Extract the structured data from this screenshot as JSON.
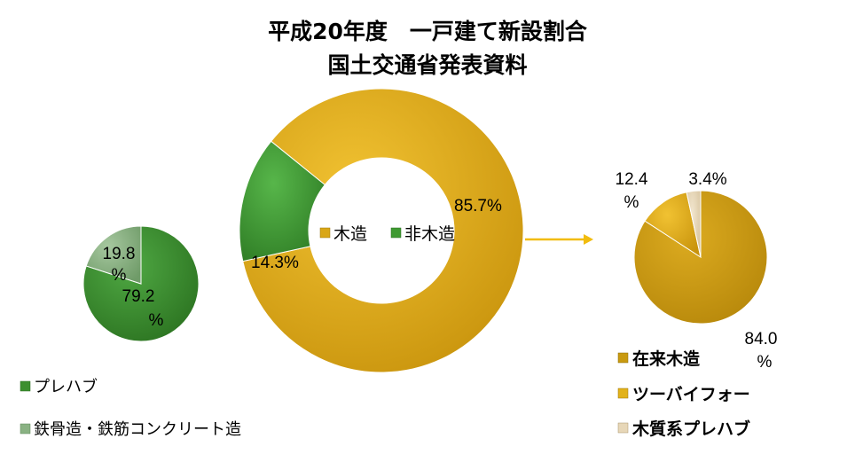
{
  "chart_data": [
    {
      "type": "pie",
      "title_lines": [
        "平成20年度　一戸建て新設割合",
        "国土交通省発表資料"
      ],
      "categories": [
        "木造",
        "非木造"
      ],
      "values": [
        85.7,
        14.3
      ],
      "labels": [
        "85.7%",
        "14.3%"
      ],
      "legend": [
        "木造",
        "非木造"
      ],
      "legend_position": "center",
      "colors": [
        "#d9a617",
        "#3f9a32"
      ],
      "style": "donut"
    },
    {
      "type": "pie",
      "categories": [
        "プレハブ",
        "鉄骨造・鉄筋コンクリート造"
      ],
      "values": [
        79.2,
        19.8
      ],
      "labels": [
        "79.2\n%",
        "19.8\n%"
      ],
      "legend": [
        "プレハブ",
        "鉄骨造・鉄筋コンクリート造"
      ],
      "legend_position": "bottom",
      "colors": [
        "#3d8f2f",
        "#8ab283"
      ]
    },
    {
      "type": "pie",
      "categories": [
        "在来木造",
        "ツーバイフォー",
        "木質系プレハブ"
      ],
      "values": [
        84.0,
        12.4,
        3.4
      ],
      "labels": [
        "84.0\n%",
        "12.4\n%",
        "3.4%"
      ],
      "legend": [
        "在来木造",
        "ツーバイフォー",
        "木質系プレハブ"
      ],
      "legend_position": "bottom-right",
      "colors": [
        "#c99a10",
        "#d9a617",
        "#e7d7b8"
      ]
    }
  ]
}
